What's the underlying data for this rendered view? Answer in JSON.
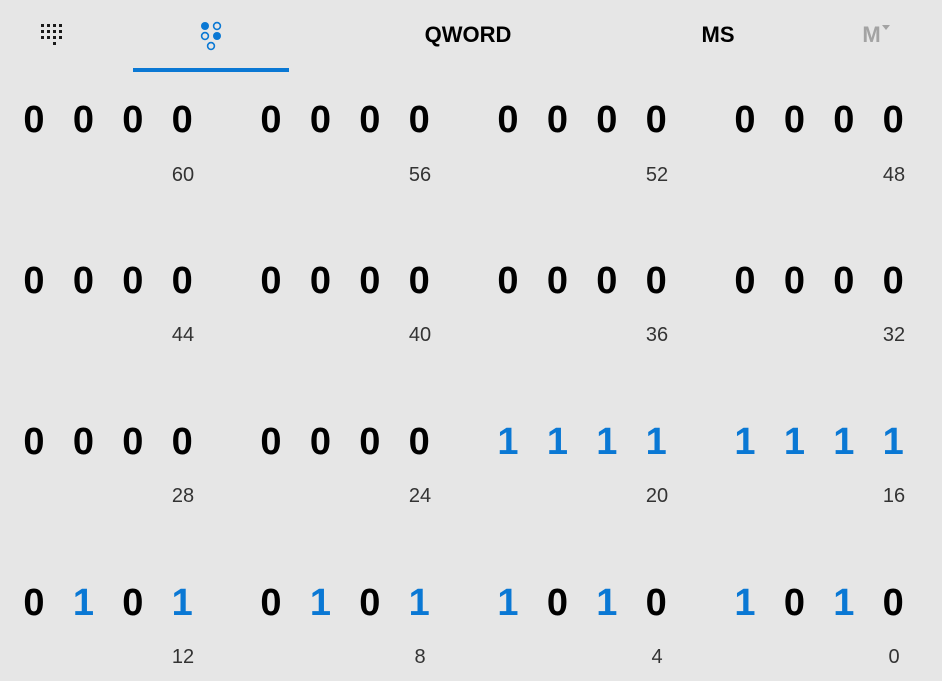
{
  "toolbar": {
    "keypad_icon": "keypad-icon",
    "bit_toggle_icon": "bit-toggle-keypad-icon",
    "word_size": "QWORD",
    "memory_store": "MS",
    "memory_menu": "M"
  },
  "colors": {
    "accent": "#0a78d4",
    "background": "#e6e6e6",
    "bit_off": "#000000",
    "label": "#333333",
    "disabled": "#a3a3a3"
  },
  "rows": [
    {
      "groups": [
        {
          "bits": [
            "0",
            "0",
            "0",
            "0"
          ],
          "position": "60"
        },
        {
          "bits": [
            "0",
            "0",
            "0",
            "0"
          ],
          "position": "56"
        },
        {
          "bits": [
            "0",
            "0",
            "0",
            "0"
          ],
          "position": "52"
        },
        {
          "bits": [
            "0",
            "0",
            "0",
            "0"
          ],
          "position": "48"
        }
      ]
    },
    {
      "groups": [
        {
          "bits": [
            "0",
            "0",
            "0",
            "0"
          ],
          "position": "44"
        },
        {
          "bits": [
            "0",
            "0",
            "0",
            "0"
          ],
          "position": "40"
        },
        {
          "bits": [
            "0",
            "0",
            "0",
            "0"
          ],
          "position": "36"
        },
        {
          "bits": [
            "0",
            "0",
            "0",
            "0"
          ],
          "position": "32"
        }
      ]
    },
    {
      "groups": [
        {
          "bits": [
            "0",
            "0",
            "0",
            "0"
          ],
          "position": "28"
        },
        {
          "bits": [
            "0",
            "0",
            "0",
            "0"
          ],
          "position": "24"
        },
        {
          "bits": [
            "1",
            "1",
            "1",
            "1"
          ],
          "position": "20"
        },
        {
          "bits": [
            "1",
            "1",
            "1",
            "1"
          ],
          "position": "16"
        }
      ]
    },
    {
      "groups": [
        {
          "bits": [
            "0",
            "1",
            "0",
            "1"
          ],
          "position": "12"
        },
        {
          "bits": [
            "0",
            "1",
            "0",
            "1"
          ],
          "position": "8"
        },
        {
          "bits": [
            "1",
            "0",
            "1",
            "0"
          ],
          "position": "4"
        },
        {
          "bits": [
            "1",
            "0",
            "1",
            "0"
          ],
          "position": "0"
        }
      ]
    }
  ]
}
